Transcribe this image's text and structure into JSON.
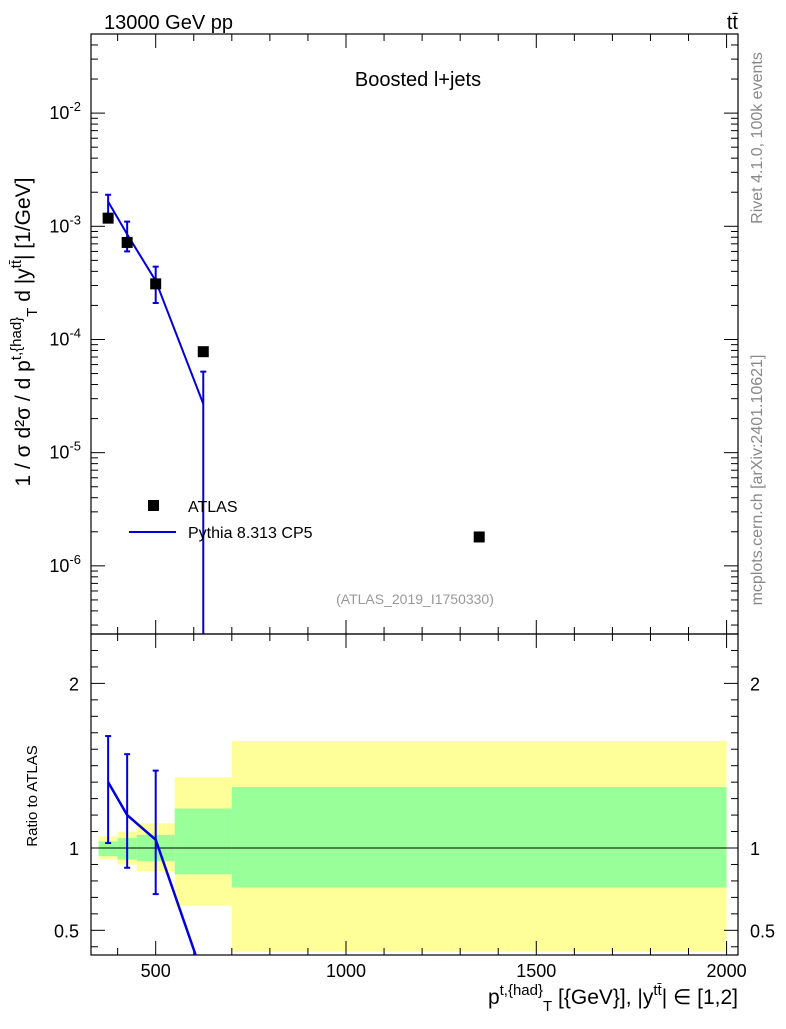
{
  "header": {
    "left_label": "13000 GeV pp",
    "right_label": "tt̄"
  },
  "side_labels": {
    "rivet": "Rivet 4.1.0,  100k events",
    "mcplots": "mcplots.cern.ch [arXiv:2401.10621]"
  },
  "chart_data": [
    {
      "type": "scatter",
      "panel": "main",
      "title": "Boosted l+jets",
      "analysis_label": "(ATLAS_2019_I1750330)",
      "ylabel": "1 / σ d²σ / d p^{t,{had}}_{T} d |y^{tt̄}| [1/GeV]",
      "yscale": "log",
      "xlim": [
        330,
        2030
      ],
      "ylim": [
        2.5e-07,
        0.05
      ],
      "yticks": [
        {
          "value": 1e-06,
          "label": "10^-6"
        },
        {
          "value": 1e-05,
          "label": "10^-5"
        },
        {
          "value": 0.0001,
          "label": "10^-4"
        },
        {
          "value": 0.001,
          "label": "10^-3"
        },
        {
          "value": 0.01,
          "label": "10^-2"
        }
      ],
      "series": [
        {
          "name": "ATLAS",
          "color": "#000000",
          "marker": "square",
          "points": [
            {
              "x": 375,
              "y": 0.00118
            },
            {
              "x": 425,
              "y": 0.00072
            },
            {
              "x": 500,
              "y": 0.00031
            },
            {
              "x": 625,
              "y": 7.8e-05
            },
            {
              "x": 1350,
              "y": 1.8e-06
            }
          ]
        },
        {
          "name": "Pythia 8.313 CP5",
          "color": "#0000dd",
          "style": "line",
          "points": [
            {
              "x": 375,
              "y": 0.00165,
              "err_lo": 0.00115,
              "err_hi": 0.0019
            },
            {
              "x": 425,
              "y": 0.00085,
              "err_lo": 0.0006,
              "err_hi": 0.0011
            },
            {
              "x": 500,
              "y": 0.00033,
              "err_lo": 0.00021,
              "err_hi": 0.00044
            },
            {
              "x": 625,
              "y": 2.7e-05,
              "err_lo": 2.5e-07,
              "err_hi": 5.2e-05
            }
          ]
        }
      ]
    },
    {
      "type": "line",
      "panel": "ratio",
      "ylabel": "Ratio to ATLAS",
      "xlabel": "p^{t,{had}}_{T} [{GeV}], |y^{tt̄}| ∈ [1,2]",
      "xlim": [
        330,
        2030
      ],
      "ylim": [
        0.35,
        2.3
      ],
      "xticks": [
        500,
        1000,
        1500,
        2000
      ],
      "yticks": [
        0.5,
        1,
        2
      ],
      "bands": [
        {
          "x0": 350,
          "x1": 400,
          "green": [
            0.95,
            1.04
          ],
          "yellow": [
            0.93,
            1.07
          ]
        },
        {
          "x0": 400,
          "x1": 450,
          "green": [
            0.93,
            1.06
          ],
          "yellow": [
            0.9,
            1.1
          ]
        },
        {
          "x0": 450,
          "x1": 550,
          "green": [
            0.92,
            1.08
          ],
          "yellow": [
            0.86,
            1.15
          ]
        },
        {
          "x0": 550,
          "x1": 700,
          "green": [
            0.84,
            1.24
          ],
          "yellow": [
            0.65,
            1.43
          ]
        },
        {
          "x0": 700,
          "x1": 2000,
          "green": [
            0.76,
            1.37
          ],
          "yellow": [
            0.37,
            1.65
          ]
        }
      ],
      "series": [
        {
          "name": "Pythia 8.313 CP5",
          "color": "#0000dd",
          "points": [
            {
              "x": 375,
              "y": 1.4,
              "err_lo": 1.03,
              "err_hi": 1.68
            },
            {
              "x": 425,
              "y": 1.2,
              "err_lo": 0.88,
              "err_hi": 1.57
            },
            {
              "x": 500,
              "y": 1.05,
              "err_lo": 0.72,
              "err_hi": 1.47
            },
            {
              "x": 605,
              "y": 0.35
            }
          ]
        }
      ]
    }
  ]
}
